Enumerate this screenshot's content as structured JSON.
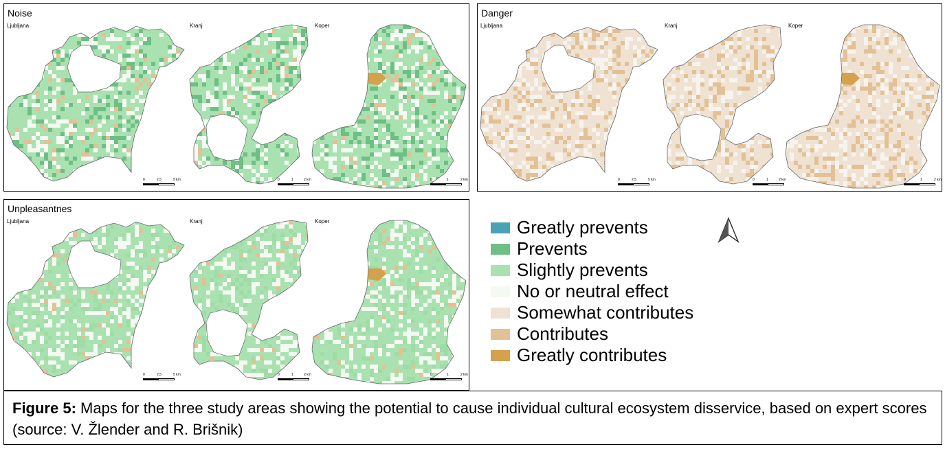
{
  "panels": [
    {
      "title": "Noise",
      "cities": [
        "Ljubljana",
        "Kranj",
        "Koper"
      ],
      "scale_labels": [
        [
          "0",
          "2,5",
          "5 km"
        ],
        [
          "0",
          "1",
          "2 km"
        ],
        [
          "0",
          "1",
          "2 km"
        ]
      ]
    },
    {
      "title": "Danger",
      "cities": [
        "Ljubljana",
        "Kranj",
        "Koper"
      ],
      "scale_labels": [
        [
          "0",
          "2,5",
          "5 km"
        ],
        [
          "0",
          "1",
          "2 km"
        ],
        [
          "0",
          "1",
          "2 km"
        ]
      ]
    },
    {
      "title": "Unpleasantnes",
      "cities": [
        "Ljubljana",
        "Kranj",
        "Koper"
      ],
      "scale_labels": [
        [
          "0",
          "2,5",
          "5 km"
        ],
        [
          "0",
          "1",
          "2 km"
        ],
        [
          "0",
          "1",
          "2 km"
        ]
      ]
    }
  ],
  "legend": [
    {
      "label": "Greatly prevents",
      "color": "#4aa3b5"
    },
    {
      "label": "Prevents",
      "color": "#6dbf85"
    },
    {
      "label": "Slightly prevents",
      "color": "#a9e2b0"
    },
    {
      "label": "No or neutral effect",
      "color": "#f4f9f1"
    },
    {
      "label": "Somewhat contributes",
      "color": "#efe2d2"
    },
    {
      "label": "Contributes",
      "color": "#e2c196"
    },
    {
      "label": "Greatly contributes",
      "color": "#d4a24c"
    }
  ],
  "caption": {
    "label": "Figure 5:",
    "text": " Maps for the three study areas showing the potential to cause individual cultural ecosystem disservice, based on expert scores (source: V. Žlender and R. Brišnik)"
  },
  "map_colors": {
    "noise": {
      "base": "#a9e2b0",
      "patch": "#6dbf85",
      "neutral": "#f4f9f1",
      "hot": "#d4a24c",
      "warm": "#e2c196"
    },
    "danger": {
      "base": "#efe2d2",
      "patch": "#e2c196",
      "neutral": "#f7f3ee",
      "hot": "#d4a24c",
      "warm": "#e2c196"
    },
    "unpleasantnes": {
      "base": "#a9e2b0",
      "patch": "#9fdca7",
      "neutral": "#f4f9f1",
      "hot": "#d4a24c",
      "warm": "#e2c196"
    }
  }
}
